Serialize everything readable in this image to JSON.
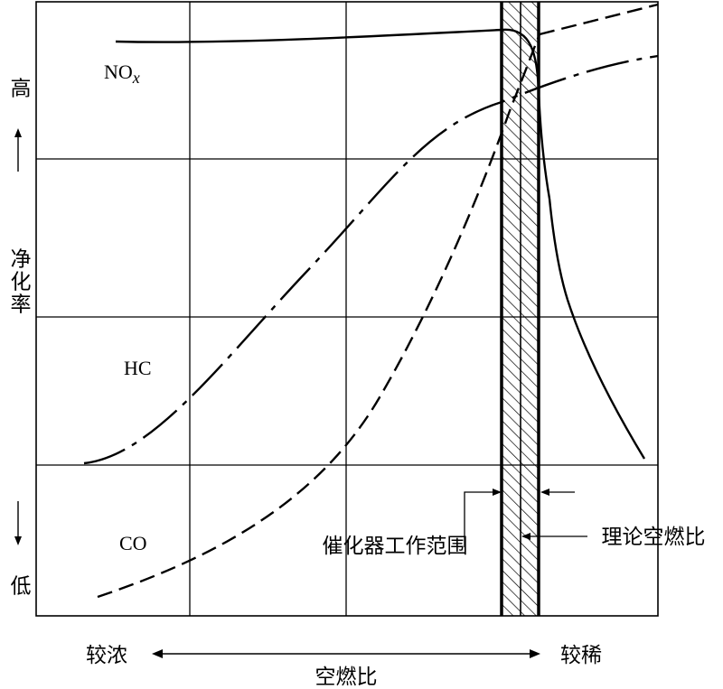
{
  "figure": {
    "y_axis": {
      "label": "净化率",
      "high": "高",
      "low": "低"
    },
    "x_axis": {
      "label": "空燃比",
      "left": "较浓",
      "right": "较稀"
    },
    "curves": {
      "nox": {
        "base": "NO",
        "sub": "x"
      },
      "hc": "HC",
      "co": "CO"
    },
    "annotations": {
      "catalyst_window": "催化器工作范围",
      "stoichiometric": "理论空燃比"
    }
  }
}
